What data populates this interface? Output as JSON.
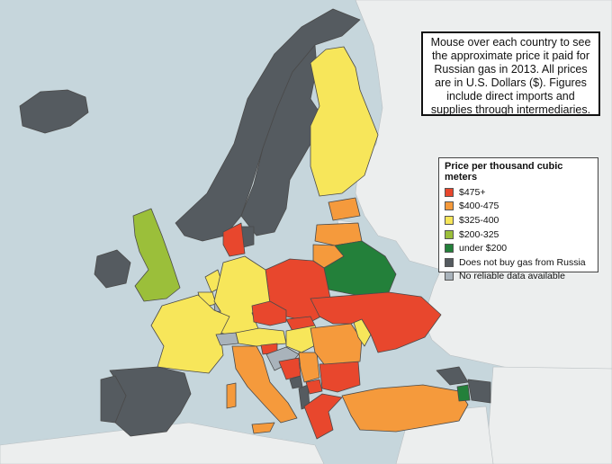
{
  "info_text": "Mouse over each country to see the approximate price it paid for Russian gas in 2013. All prices are in U.S. Dollars ($). Figures include direct imports and supplies through intermediaries.",
  "legend": {
    "title": "Price per thousand cubic meters",
    "items": [
      {
        "label": "$475+",
        "color": "#e8472d"
      },
      {
        "label": "$400-475",
        "color": "#f59a3c"
      },
      {
        "label": "$325-400",
        "color": "#f7e65a"
      },
      {
        "label": "$200-325",
        "color": "#9bbf3a"
      },
      {
        "label": "under $200",
        "color": "#23803a"
      },
      {
        "label": "Does not buy gas from Russia",
        "color": "#555b60"
      },
      {
        "label": "No reliable data available",
        "color": "#a9b3bb"
      }
    ]
  },
  "colors": {
    "sea": "#c6d6dc",
    "land_outside": "#eceeee",
    "border": "#4a4a4a"
  },
  "countries": [
    {
      "id": "iceland",
      "tier": 5
    },
    {
      "id": "norway",
      "tier": 5
    },
    {
      "id": "sweden",
      "tier": 5
    },
    {
      "id": "finland",
      "tier": 2
    },
    {
      "id": "estonia",
      "tier": 1
    },
    {
      "id": "latvia",
      "tier": 1
    },
    {
      "id": "lithuania",
      "tier": 1
    },
    {
      "id": "belarus",
      "tier": 4
    },
    {
      "id": "poland",
      "tier": 0
    },
    {
      "id": "denmark",
      "tier": 5
    },
    {
      "id": "denmark_jutland",
      "tier": 0
    },
    {
      "id": "uk",
      "tier": 3
    },
    {
      "id": "ireland",
      "tier": 5
    },
    {
      "id": "netherlands",
      "tier": 2
    },
    {
      "id": "belgium",
      "tier": 2
    },
    {
      "id": "luxembourg",
      "tier": 6
    },
    {
      "id": "germany",
      "tier": 2
    },
    {
      "id": "france",
      "tier": 2
    },
    {
      "id": "switzerland",
      "tier": 6
    },
    {
      "id": "austria",
      "tier": 2
    },
    {
      "id": "czech",
      "tier": 0
    },
    {
      "id": "slovakia",
      "tier": 0
    },
    {
      "id": "hungary",
      "tier": 2
    },
    {
      "id": "slovenia",
      "tier": 0
    },
    {
      "id": "croatia",
      "tier": 6
    },
    {
      "id": "bosnia",
      "tier": 0
    },
    {
      "id": "serbia",
      "tier": 1
    },
    {
      "id": "montenegro",
      "tier": 5
    },
    {
      "id": "albania",
      "tier": 5
    },
    {
      "id": "macedonia",
      "tier": 0
    },
    {
      "id": "greece",
      "tier": 0
    },
    {
      "id": "bulgaria",
      "tier": 0
    },
    {
      "id": "romania",
      "tier": 1
    },
    {
      "id": "moldova",
      "tier": 2
    },
    {
      "id": "ukraine",
      "tier": 0
    },
    {
      "id": "italy",
      "tier": 1
    },
    {
      "id": "sardinia",
      "tier": 1
    },
    {
      "id": "sicily",
      "tier": 1
    },
    {
      "id": "spain",
      "tier": 5
    },
    {
      "id": "portugal",
      "tier": 5
    },
    {
      "id": "turkey",
      "tier": 1
    },
    {
      "id": "georgia",
      "tier": 5
    },
    {
      "id": "armenia",
      "tier": 4
    },
    {
      "id": "azerbaijan",
      "tier": 5
    }
  ]
}
